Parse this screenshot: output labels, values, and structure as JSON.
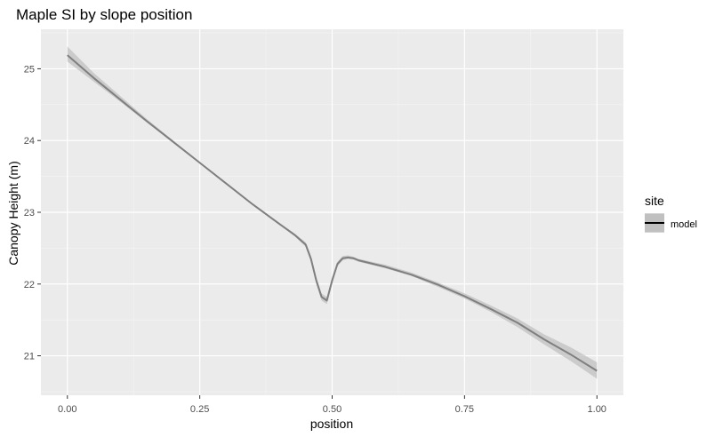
{
  "chart_data": {
    "type": "line",
    "title": "Maple SI by slope position",
    "xlabel": "position",
    "ylabel": "Canopy Height (m)",
    "xlim": [
      -0.05,
      1.05
    ],
    "ylim": [
      20.45,
      25.55
    ],
    "x_ticks": [
      0.0,
      0.25,
      0.5,
      0.75,
      1.0
    ],
    "x_tick_labels": [
      "0.00",
      "0.25",
      "0.50",
      "0.75",
      "1.00"
    ],
    "y_ticks": [
      21,
      22,
      23,
      24,
      25
    ],
    "y_tick_labels": [
      "21",
      "22",
      "23",
      "24",
      "25"
    ],
    "grid": true,
    "legend": {
      "title": "site",
      "position": "right",
      "entries": [
        "model"
      ]
    },
    "series": [
      {
        "name": "model",
        "x": [
          0.0,
          0.05,
          0.1,
          0.15,
          0.2,
          0.25,
          0.3,
          0.35,
          0.4,
          0.43,
          0.45,
          0.46,
          0.47,
          0.48,
          0.49,
          0.5,
          0.51,
          0.52,
          0.53,
          0.54,
          0.55,
          0.6,
          0.65,
          0.7,
          0.75,
          0.8,
          0.85,
          0.9,
          0.95,
          1.0
        ],
        "y": [
          25.19,
          24.87,
          24.57,
          24.27,
          23.98,
          23.69,
          23.4,
          23.11,
          22.84,
          22.68,
          22.55,
          22.35,
          22.05,
          21.82,
          21.77,
          22.05,
          22.28,
          22.36,
          22.37,
          22.36,
          22.33,
          22.24,
          22.13,
          21.99,
          21.83,
          21.65,
          21.46,
          21.23,
          21.02,
          20.79
        ],
        "lower": [
          25.1,
          24.82,
          24.54,
          24.25,
          23.97,
          23.68,
          23.39,
          23.1,
          22.83,
          22.66,
          22.52,
          22.31,
          22.0,
          21.77,
          21.72,
          22.0,
          22.25,
          22.33,
          22.35,
          22.34,
          22.31,
          22.22,
          22.11,
          21.96,
          21.8,
          21.61,
          21.4,
          21.16,
          20.93,
          20.68
        ],
        "upper": [
          25.31,
          24.94,
          24.62,
          24.3,
          24.0,
          23.7,
          23.41,
          23.12,
          22.85,
          22.7,
          22.58,
          22.39,
          22.1,
          21.87,
          21.82,
          22.1,
          22.31,
          22.39,
          22.4,
          22.38,
          22.35,
          22.27,
          22.16,
          22.02,
          21.87,
          21.7,
          21.52,
          21.3,
          21.12,
          20.91
        ]
      }
    ]
  },
  "colors": {
    "panel_background": "#EBEBEB",
    "grid_major": "#FFFFFF",
    "grid_minor": "#F5F5F5",
    "line": "#7F7F7F",
    "ribbon": "#C0C0C0",
    "legend_key_background": "#D3D3D3",
    "legend_key_line": "#000000"
  }
}
